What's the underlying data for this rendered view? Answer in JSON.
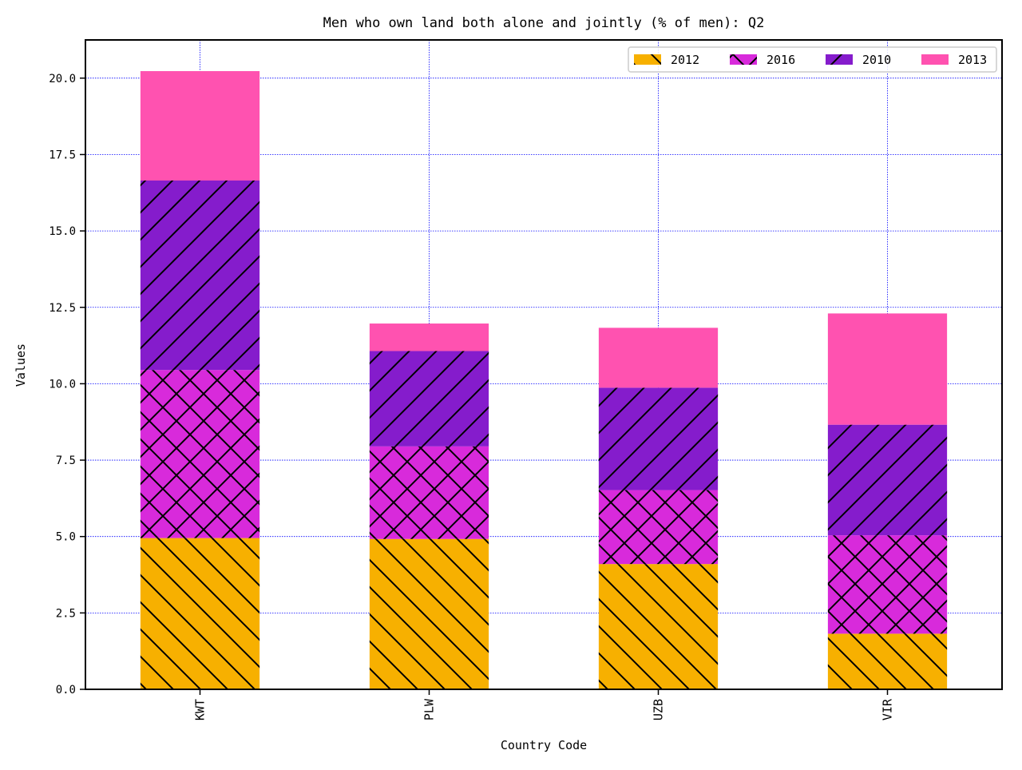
{
  "chart_data": {
    "type": "bar",
    "stacked": true,
    "title": "Men who own land both alone and jointly (% of men): Q2",
    "xlabel": "Country Code",
    "ylabel": "Values",
    "categories": [
      "KWT",
      "PLW",
      "UZB",
      "VIR"
    ],
    "series": [
      {
        "name": "2012",
        "values": [
          4.95,
          4.92,
          4.1,
          1.82
        ],
        "color": "#f7b000",
        "hatch": "backslash"
      },
      {
        "name": "2016",
        "values": [
          5.5,
          3.03,
          2.42,
          3.22
        ],
        "color": "#d82adb",
        "hatch": "cross"
      },
      {
        "name": "2010",
        "values": [
          6.2,
          3.12,
          3.35,
          3.62
        ],
        "color": "#851ccc",
        "hatch": "slash"
      },
      {
        "name": "2013",
        "values": [
          3.58,
          0.9,
          1.96,
          3.64
        ],
        "color": "#ff52b0",
        "hatch": "none"
      }
    ],
    "ylim": [
      0,
      21.25
    ],
    "yticks": [
      "0.0",
      "2.5",
      "5.0",
      "7.5",
      "10.0",
      "12.5",
      "15.0",
      "17.5",
      "20.0"
    ],
    "ytick_values": [
      0,
      2.5,
      5,
      7.5,
      10,
      12.5,
      15,
      17.5,
      20
    ],
    "grid": true,
    "grid_color": "#0000ff",
    "legend_position": "top-right",
    "legend_columns": 4
  }
}
